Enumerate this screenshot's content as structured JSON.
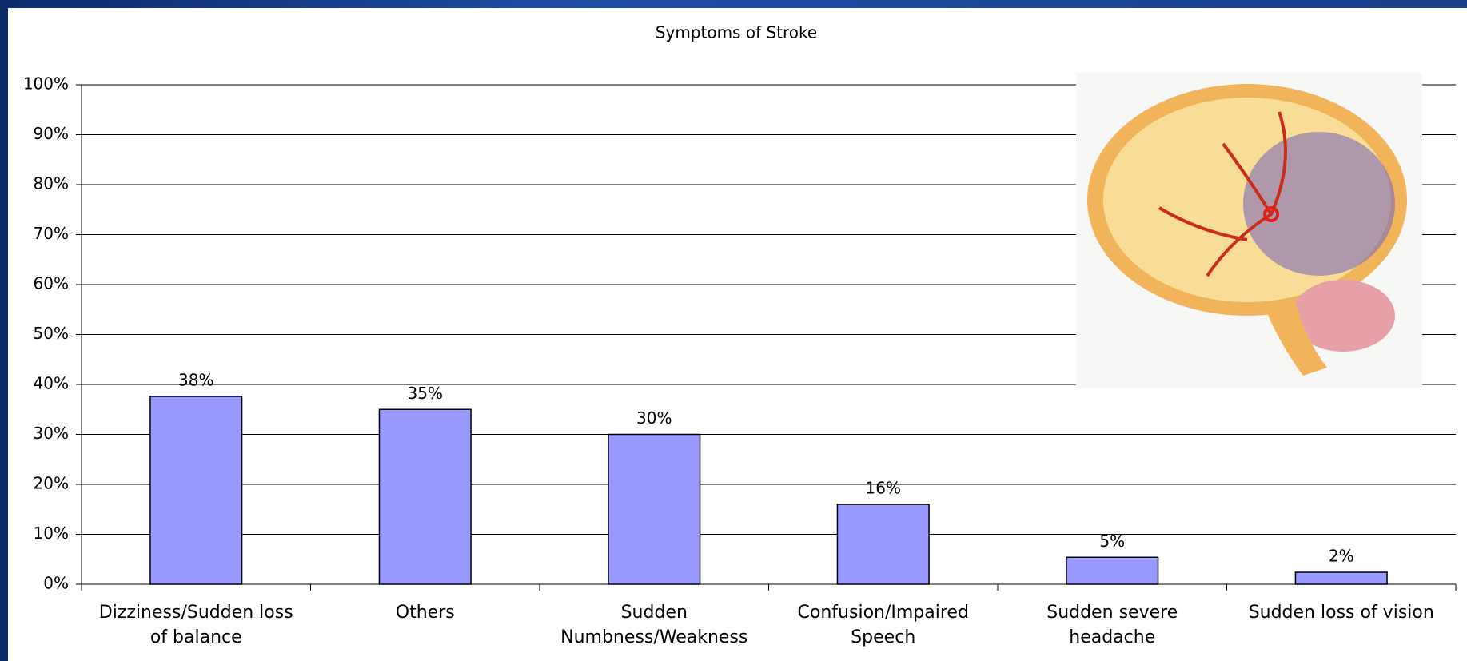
{
  "chart_data": {
    "type": "bar",
    "title": "Symptoms of Stroke",
    "categories": [
      "Dizziness/Sudden loss of balance",
      "Others",
      "Sudden Numbness/Weakness",
      "Confusion/Impaired Speech",
      "Sudden severe headache",
      "Sudden loss of vision"
    ],
    "values": [
      37.6,
      35,
      30,
      16,
      5.4,
      2.4
    ],
    "value_labels": [
      "38%",
      "35%",
      "30%",
      "16%",
      "5%",
      "2%"
    ],
    "color": "#9999ff",
    "ylim": [
      0,
      100
    ],
    "yticks": [
      {
        "value": 0,
        "label": "0%"
      },
      {
        "value": 10,
        "label": "10%"
      },
      {
        "value": 20,
        "label": "20%"
      },
      {
        "value": 30,
        "label": "30%"
      },
      {
        "value": 40,
        "label": "40%"
      },
      {
        "value": 50,
        "label": "50%"
      },
      {
        "value": 60,
        "label": "60%"
      },
      {
        "value": 70,
        "label": "70%"
      },
      {
        "value": 80,
        "label": "80%"
      },
      {
        "value": 90,
        "label": "90%"
      },
      {
        "value": 100,
        "label": "100%"
      }
    ],
    "grid": true
  }
}
